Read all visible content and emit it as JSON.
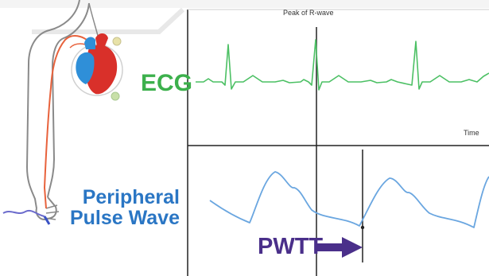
{
  "labels": {
    "ecg": "ECG",
    "peripheral_line1": "Peripheral",
    "peripheral_line2": "Pulse Wave",
    "pwtt": "PWTT",
    "peak": "Peak of R-wave",
    "time": "Time"
  },
  "colors": {
    "ecg_trace": "#4cc064",
    "ecg_label": "#3cb04c",
    "pulse_trace": "#6aa6e0",
    "pulse_label": "#2a76c4",
    "pwtt_arrow": "#4a2f8a",
    "axis": "#222222",
    "arm_outline": "#8a8a8a",
    "artery": "#e8623c",
    "heart_red": "#d9302a",
    "heart_blue": "#2f8fd8"
  },
  "icons": {
    "body": "arm-figure-icon",
    "heart": "heart-icon",
    "arrow": "right-arrow-icon"
  }
}
